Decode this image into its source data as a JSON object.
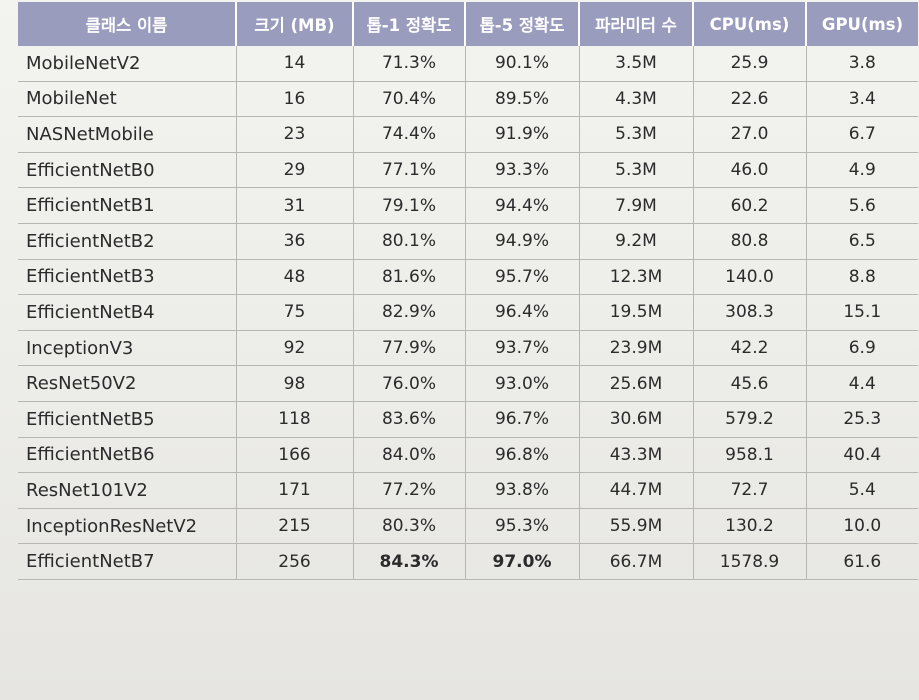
{
  "table": {
    "headers": [
      "클래스 이름",
      "크기 (MB)",
      "톱-1 정확도",
      "톱-5 정확도",
      "파라미터 수",
      "CPU(ms)",
      "GPU(ms)"
    ],
    "rows": [
      [
        "MobileNetV2",
        "14",
        "71.3%",
        "90.1%",
        "3.5M",
        "25.9",
        "3.8"
      ],
      [
        "MobileNet",
        "16",
        "70.4%",
        "89.5%",
        "4.3M",
        "22.6",
        "3.4"
      ],
      [
        "NASNetMobile",
        "23",
        "74.4%",
        "91.9%",
        "5.3M",
        "27.0",
        "6.7"
      ],
      [
        "EfficientNetB0",
        "29",
        "77.1%",
        "93.3%",
        "5.3M",
        "46.0",
        "4.9"
      ],
      [
        "EfficientNetB1",
        "31",
        "79.1%",
        "94.4%",
        "7.9M",
        "60.2",
        "5.6"
      ],
      [
        "EfficientNetB2",
        "36",
        "80.1%",
        "94.9%",
        "9.2M",
        "80.8",
        "6.5"
      ],
      [
        "EfficientNetB3",
        "48",
        "81.6%",
        "95.7%",
        "12.3M",
        "140.0",
        "8.8"
      ],
      [
        "EfficientNetB4",
        "75",
        "82.9%",
        "96.4%",
        "19.5M",
        "308.3",
        "15.1"
      ],
      [
        "InceptionV3",
        "92",
        "77.9%",
        "93.7%",
        "23.9M",
        "42.2",
        "6.9"
      ],
      [
        "ResNet50V2",
        "98",
        "76.0%",
        "93.0%",
        "25.6M",
        "45.6",
        "4.4"
      ],
      [
        "EfficientNetB5",
        "118",
        "83.6%",
        "96.7%",
        "30.6M",
        "579.2",
        "25.3"
      ],
      [
        "EfficientNetB6",
        "166",
        "84.0%",
        "96.8%",
        "43.3M",
        "958.1",
        "40.4"
      ],
      [
        "ResNet101V2",
        "171",
        "77.2%",
        "93.8%",
        "44.7M",
        "72.7",
        "5.4"
      ],
      [
        "InceptionResNetV2",
        "215",
        "80.3%",
        "95.3%",
        "55.9M",
        "130.2",
        "10.0"
      ],
      [
        "EfficientNetB7",
        "256",
        "84.3%",
        "97.0%",
        "66.7M",
        "1578.9",
        "61.6"
      ]
    ],
    "bold_cells": [
      [
        14,
        2
      ],
      [
        14,
        3
      ]
    ]
  }
}
